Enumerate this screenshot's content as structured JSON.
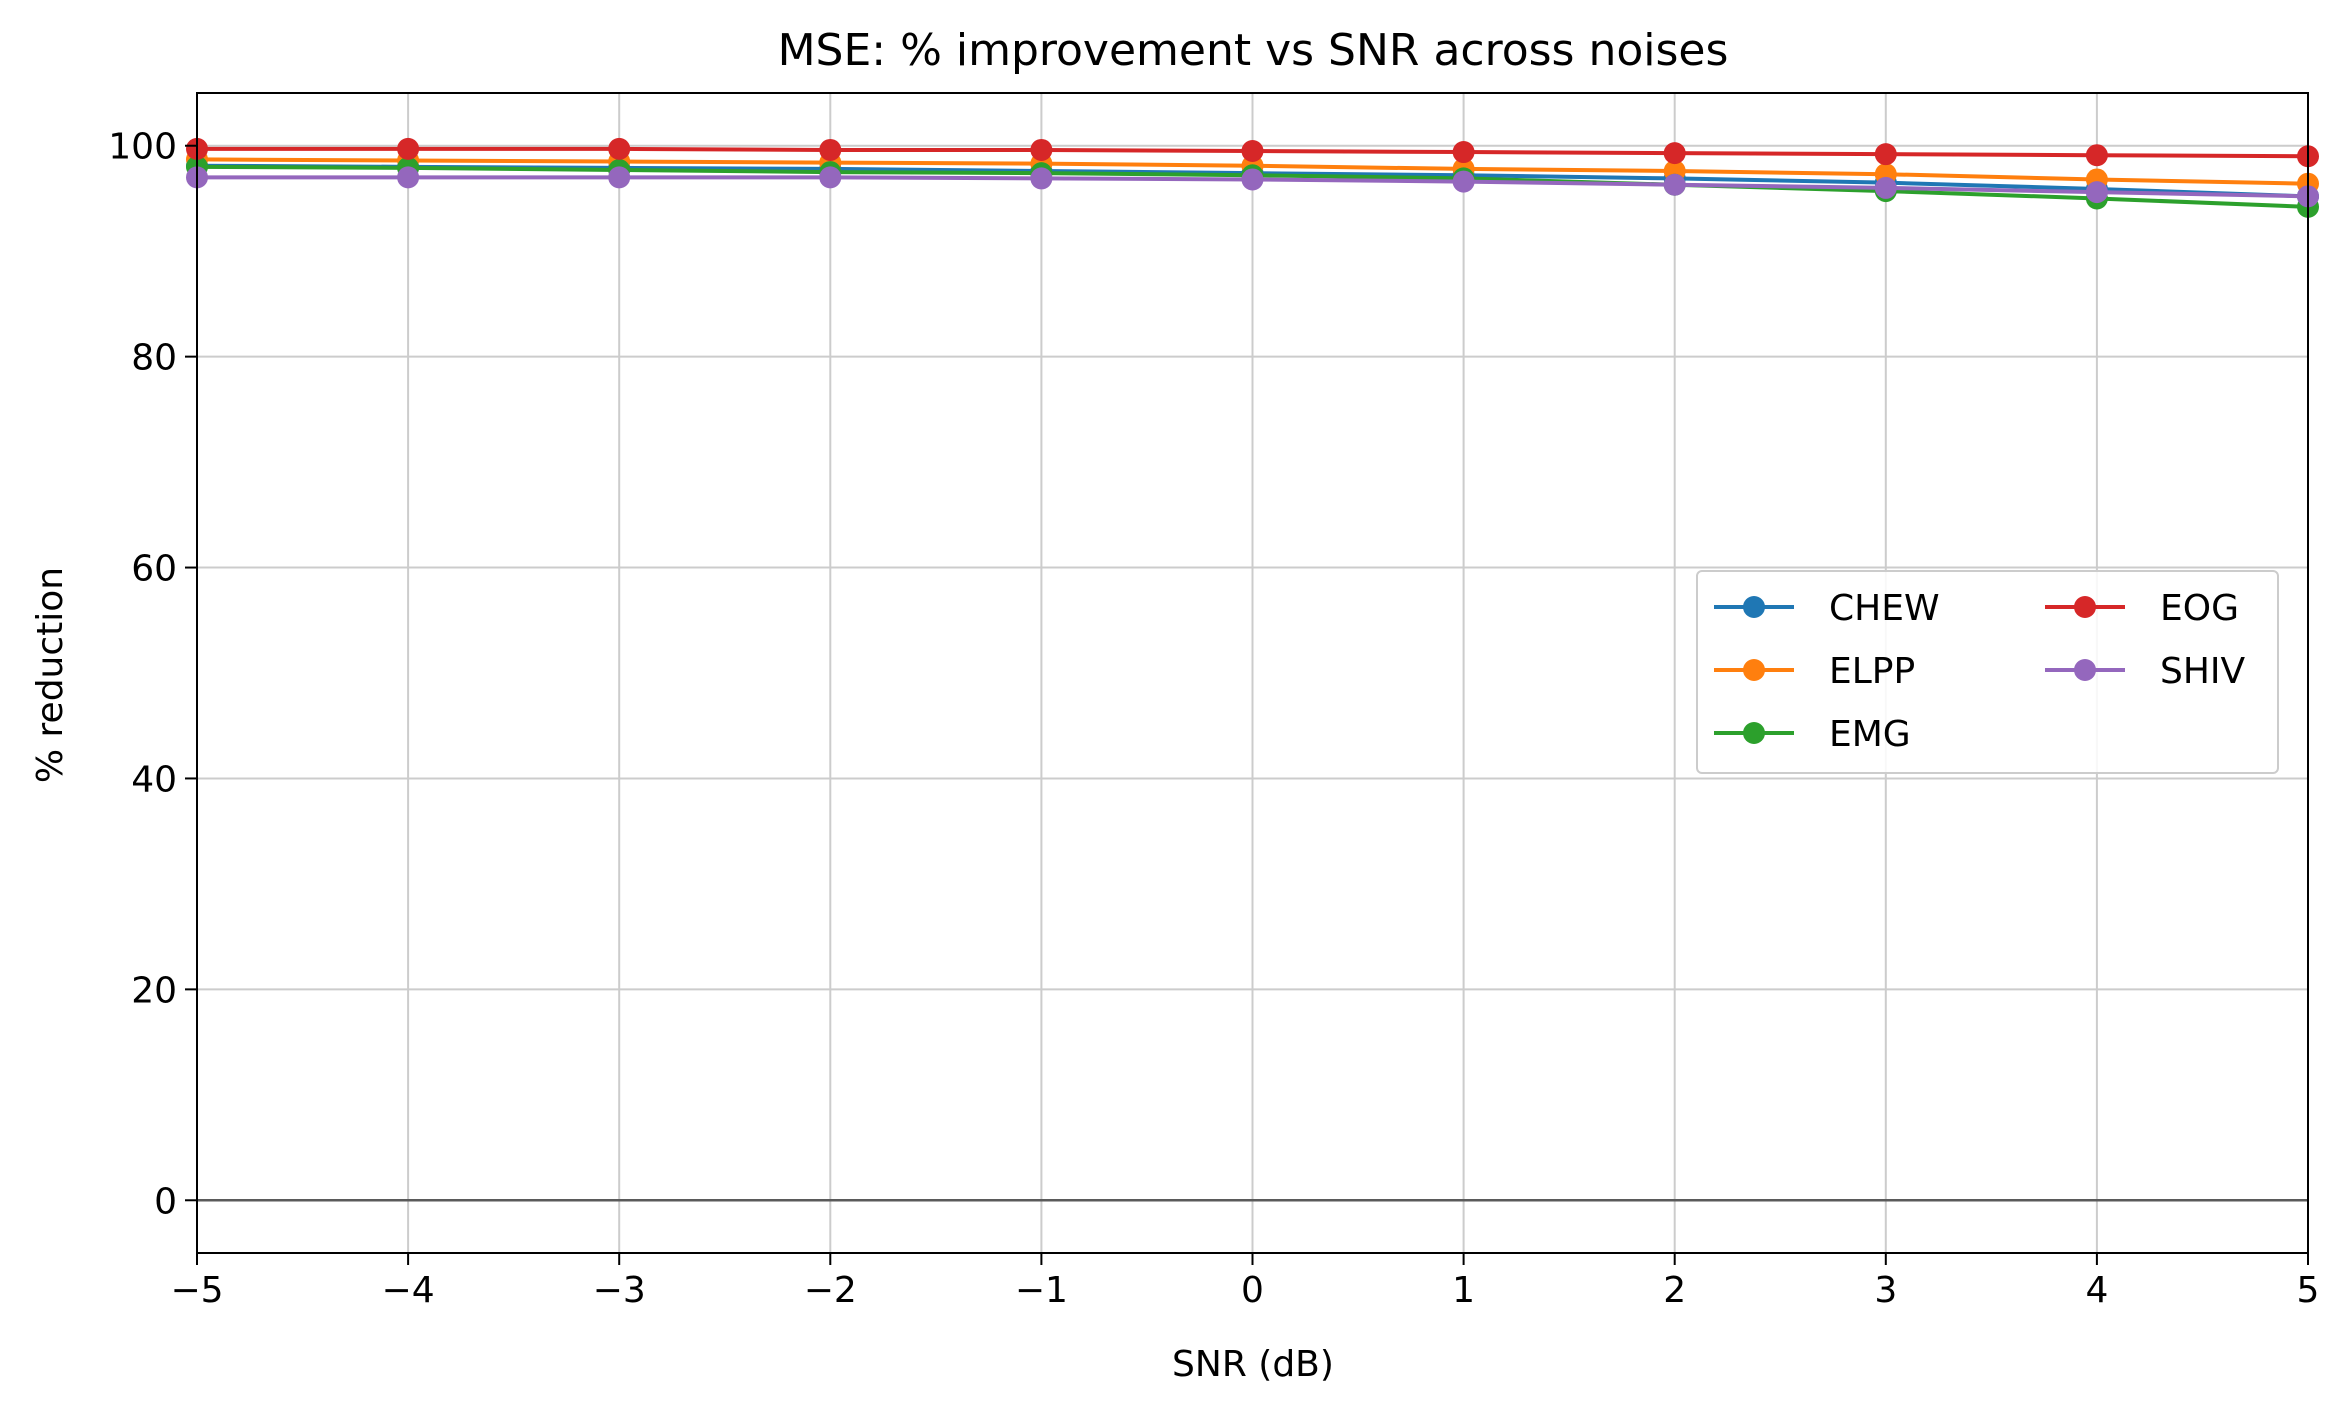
{
  "chart_data": {
    "type": "line",
    "title": "MSE: % improvement vs SNR across noises",
    "xlabel": "SNR (dB)",
    "ylabel": "% reduction",
    "xlim": [
      -5,
      5
    ],
    "ylim": [
      -5,
      105
    ],
    "xticks": [
      -5,
      -4,
      -3,
      -2,
      -1,
      0,
      1,
      2,
      3,
      4,
      5
    ],
    "xtick_labels": [
      "−5",
      "−4",
      "−3",
      "−2",
      "−1",
      "0",
      "1",
      "2",
      "3",
      "4",
      "5"
    ],
    "yticks": [
      0,
      20,
      40,
      60,
      80,
      100
    ],
    "ytick_labels": [
      "0",
      "20",
      "40",
      "60",
      "80",
      "100"
    ],
    "grid": true,
    "zero_line": 0,
    "legend_position": "center-right",
    "legend_columns": 2,
    "x": [
      -5,
      -4,
      -3,
      -2,
      -1,
      0,
      1,
      2,
      3,
      4,
      5
    ],
    "series": [
      {
        "name": "CHEW",
        "color": "#1f77b4",
        "values": [
          98.1,
          98.0,
          97.9,
          97.8,
          97.6,
          97.4,
          97.2,
          96.9,
          96.5,
          95.9,
          95.2
        ]
      },
      {
        "name": "ELPP",
        "color": "#ff7f0e",
        "values": [
          98.7,
          98.6,
          98.5,
          98.4,
          98.3,
          98.1,
          97.8,
          97.6,
          97.3,
          96.8,
          96.4
        ]
      },
      {
        "name": "EMG",
        "color": "#2ca02c",
        "values": [
          98.0,
          97.9,
          97.7,
          97.5,
          97.4,
          97.2,
          96.9,
          96.3,
          95.7,
          95.0,
          94.2
        ]
      },
      {
        "name": "EOG",
        "color": "#d62728",
        "values": [
          99.7,
          99.7,
          99.7,
          99.6,
          99.6,
          99.5,
          99.4,
          99.3,
          99.2,
          99.1,
          99.0
        ]
      },
      {
        "name": "SHIV",
        "color": "#9467bd",
        "values": [
          97.0,
          97.0,
          97.0,
          97.0,
          96.9,
          96.8,
          96.6,
          96.3,
          96.0,
          95.6,
          95.2
        ]
      }
    ]
  }
}
